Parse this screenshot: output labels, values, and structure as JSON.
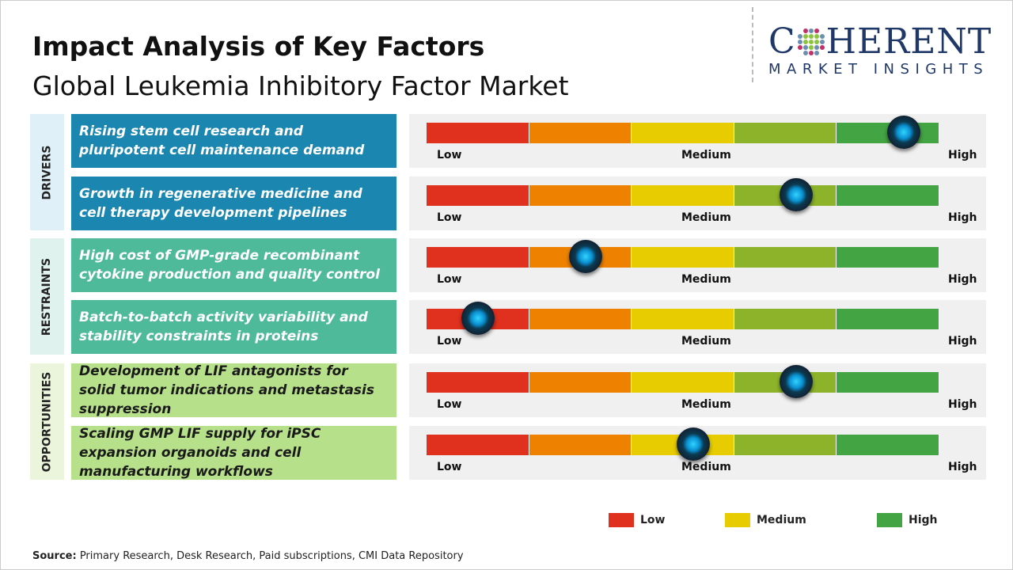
{
  "header": {
    "title": "Impact Analysis of Key Factors",
    "subtitle": "Global Leukemia Inhibitory Factor Market"
  },
  "logo": {
    "text_main": "COHERENT",
    "text_sub": "MARKET INSIGHTS"
  },
  "scale_labels": {
    "low": "Low",
    "medium": "Medium",
    "high": "High"
  },
  "colors": {
    "low": "#e0301e",
    "low_mid": "#ee8200",
    "medium": "#e6cc00",
    "mid_high": "#8db32a",
    "high": "#43a443"
  },
  "categories": [
    {
      "label": "DRIVERS",
      "bg": "#dff0f8",
      "factor_bg": "#1b87b0",
      "text_color": "#ffffff",
      "factors": [
        {
          "text": "Rising stem cell research and pluripotent cell maintenance demand",
          "impact": 0.93
        },
        {
          "text": "Growth in regenerative medicine and cell therapy development pipelines",
          "impact": 0.72
        }
      ]
    },
    {
      "label": "RESTRAINTS",
      "bg": "#e0f2ed",
      "factor_bg": "#4eba99",
      "text_color": "#ffffff",
      "factors": [
        {
          "text": "High cost of GMP-grade recombinant cytokine production and quality control",
          "impact": 0.31
        },
        {
          "text": "Batch-to-batch activity variability and stability constraints in proteins",
          "impact": 0.1
        }
      ]
    },
    {
      "label": "OPPORTUNITIES",
      "bg": "#eaf5dc",
      "factor_bg": "#b7e08b",
      "text_color": "#1a1a1a",
      "factors": [
        {
          "text": "Development of LIF antagonists for solid tumor indications and metastasis suppression",
          "impact": 0.72
        },
        {
          "text": "Scaling GMP LIF supply for iPSC expansion organoids and cell manufacturing workflows",
          "impact": 0.52
        }
      ]
    }
  ],
  "legend": [
    {
      "label": "Low",
      "color": "#e0301e"
    },
    {
      "label": "Medium",
      "color": "#e6cc00"
    },
    {
      "label": "High",
      "color": "#43a443"
    }
  ],
  "source": {
    "label": "Source:",
    "text": " Primary Research, Desk Research, Paid subscriptions, CMI Data Repository"
  }
}
